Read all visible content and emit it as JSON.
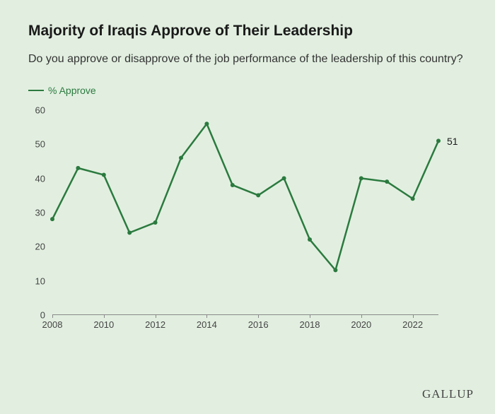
{
  "title": "Majority of Iraqis Approve of Their Leadership",
  "subtitle": "Do you approve or disapprove of the job performance of the leadership of this country?",
  "legend_label": "% Approve",
  "brand": "GALLUP",
  "chart": {
    "type": "line",
    "line_color": "#2b7a3f",
    "line_width": 2.5,
    "marker_radius": 3,
    "background_color": "#e2efe0",
    "axis_color": "#888888",
    "text_color": "#444444",
    "ylim": [
      0,
      60
    ],
    "ytick_step": 10,
    "y_ticks": [
      0,
      10,
      20,
      30,
      40,
      50,
      60
    ],
    "x_start": 2008,
    "x_end": 2023,
    "x_tick_labels": [
      2008,
      2010,
      2012,
      2014,
      2016,
      2018,
      2020,
      2022
    ],
    "years": [
      2008,
      2009,
      2010,
      2011,
      2012,
      2013,
      2014,
      2015,
      2016,
      2017,
      2018,
      2019,
      2020,
      2021,
      2022,
      2023
    ],
    "values": [
      28,
      43,
      41,
      24,
      27,
      46,
      56,
      38,
      35,
      40,
      22,
      13,
      40,
      39,
      34,
      51
    ],
    "end_label": "51",
    "title_fontsize": 21,
    "subtitle_fontsize": 16,
    "tick_fontsize": 13
  }
}
